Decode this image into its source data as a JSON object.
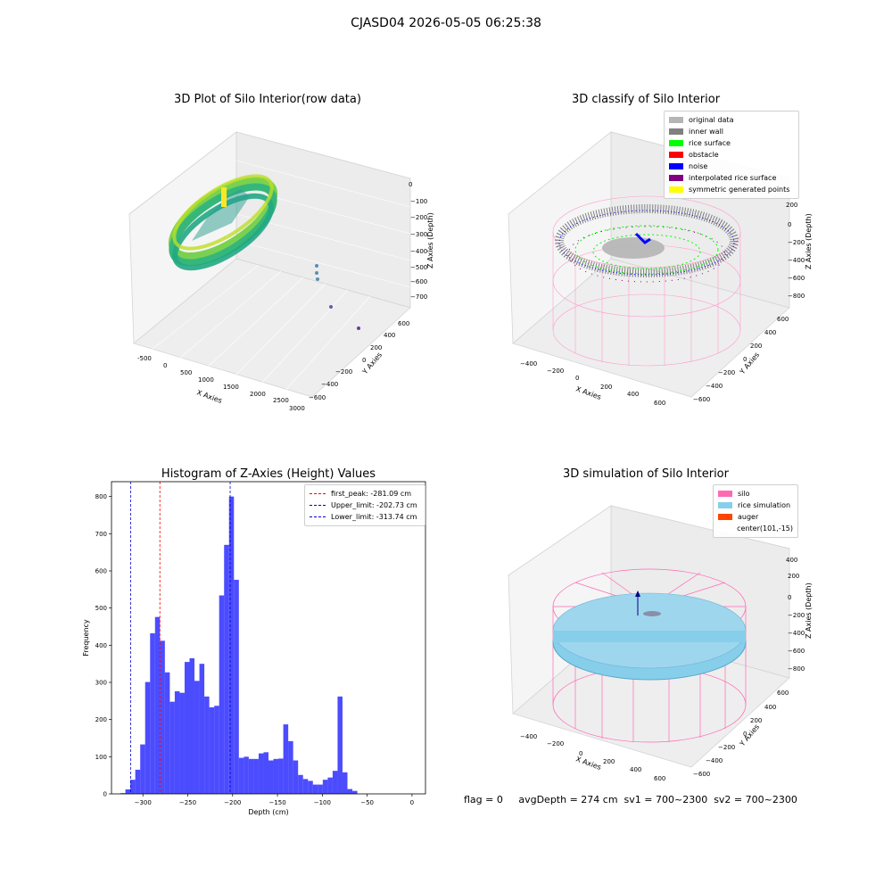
{
  "figure": {
    "suptitle": "CJASD04 2026-05-05 06:25:38",
    "footer": "flag = 0     avgDepth = 274 cm  sv1 = 700~2300  sv2 = 700~2300"
  },
  "panels": {
    "tl": {
      "title": "3D Plot of Silo Interior(row data)",
      "xlabel": "X Axies",
      "ylabel": "Y Axies",
      "zlabel": "Z Axies (Depth)",
      "xticks": [
        "-500",
        "0",
        "500",
        "1000",
        "1500",
        "2000",
        "2500",
        "3000"
      ],
      "yticks": [
        "600",
        "400",
        "200",
        "0",
        "−200",
        "−400",
        "−600"
      ],
      "zticks": [
        "0",
        "−100",
        "−200",
        "−300",
        "−400",
        "−500",
        "−600",
        "−700"
      ]
    },
    "tr": {
      "title": "3D classify of Silo Interior",
      "xlabel": "X Axies",
      "ylabel": "Y Axies",
      "zlabel": "Z Axies (Depth)",
      "xticks": [
        "−400",
        "−200",
        "0",
        "200",
        "400",
        "600"
      ],
      "yticks": [
        "600",
        "400",
        "200",
        "0",
        "−200",
        "−400",
        "−600"
      ],
      "zticks": [
        "200",
        "0",
        "−200",
        "−400",
        "−600",
        "−800"
      ],
      "zticks_top": [
        "400"
      ],
      "legend": [
        {
          "label": "original data",
          "color": "#b5b5b5"
        },
        {
          "label": "inner wall",
          "color": "#808080"
        },
        {
          "label": "rice surface",
          "color": "#00ff00"
        },
        {
          "label": "obstacle",
          "color": "#ff0000"
        },
        {
          "label": "noise",
          "color": "#0000ff"
        },
        {
          "label": "interpolated rice surface",
          "color": "#800080"
        },
        {
          "label": "symmetric generated points",
          "color": "#ffff00"
        }
      ]
    },
    "bl": {
      "title": "Histogram of Z-Axies (Height) Values",
      "legend": [
        {
          "label": "first_peak: -281.09 cm",
          "color": "#ff0000"
        },
        {
          "label": "Upper_limit: -202.73 cm",
          "color": "#0000cc"
        },
        {
          "label": "Lower_limit: -313.74 cm",
          "color": "#0000cc"
        }
      ]
    },
    "br": {
      "title": "3D simulation of Silo Interior",
      "xlabel": "X Axies",
      "ylabel": "Y Axies",
      "zlabel": "Z Axies (Depth)",
      "xticks": [
        "−400",
        "−200",
        "0",
        "200",
        "400",
        "600"
      ],
      "yticks": [
        "600",
        "400",
        "200",
        "0",
        "−200",
        "−400",
        "−600"
      ],
      "zticks": [
        "400",
        "200",
        "0",
        "−200",
        "−400",
        "−600",
        "−800"
      ],
      "legend": [
        {
          "label": "silo",
          "color": "#ff69b4"
        },
        {
          "label": "rice simulation",
          "color": "#87ceeb"
        },
        {
          "label": "auger",
          "color": "#ff4500"
        },
        {
          "label": "center(101,-15)",
          "color": ""
        }
      ]
    }
  },
  "chart_data": [
    {
      "type": "bar",
      "title": "Histogram of Z-Axies (Height) Values",
      "xlabel": "Depth (cm)",
      "ylabel": "Frequency",
      "xlim": [
        -335,
        15
      ],
      "ylim": [
        0,
        840
      ],
      "xticks": [
        -300,
        -250,
        -200,
        -150,
        -100,
        -50,
        0
      ],
      "yticks": [
        0,
        100,
        200,
        300,
        400,
        500,
        600,
        700,
        800
      ],
      "bar_color": "#0000ff",
      "bins_start": -325,
      "bin_width": 5.5,
      "values": [
        2,
        12,
        38,
        65,
        133,
        301,
        432,
        476,
        412,
        327,
        248,
        276,
        272,
        355,
        365,
        304,
        350,
        262,
        233,
        237,
        534,
        670,
        800,
        576,
        97,
        100,
        94,
        94,
        109,
        112,
        90,
        94,
        95,
        187,
        142,
        90,
        51,
        40,
        35,
        25,
        25,
        38,
        44,
        62,
        262,
        58,
        13,
        8
      ],
      "vlines": [
        {
          "x": -281.09,
          "color": "#ff0000",
          "label": "first_peak: -281.09 cm"
        },
        {
          "x": -202.73,
          "color": "#0000cc",
          "label": "Upper_limit: -202.73 cm"
        },
        {
          "x": -313.74,
          "color": "#0000cc",
          "label": "Lower_limit: -313.74 cm"
        }
      ]
    }
  ]
}
